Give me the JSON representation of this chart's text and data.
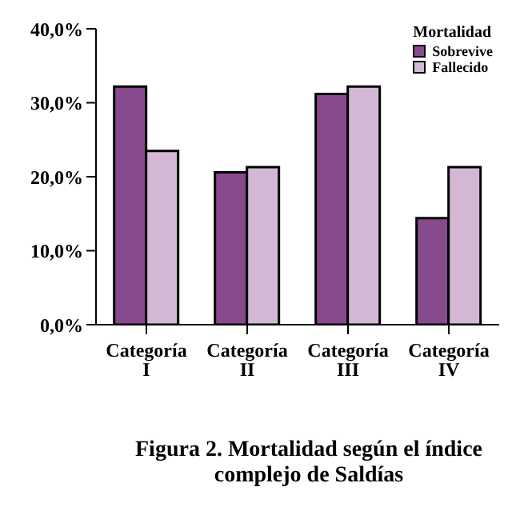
{
  "chart_data": {
    "type": "bar",
    "title": "Figura 2. Mortalidad según el índice complejo de Saldías",
    "legend_title": "Mortalidad",
    "categories": [
      "Categoría I",
      "Categoría II",
      "Categoría III",
      "Categoría IV"
    ],
    "series": [
      {
        "name": "Sobrevive",
        "color": "#874a8c",
        "values": [
          32.2,
          20.6,
          31.2,
          14.4
        ]
      },
      {
        "name": "Fallecido",
        "color": "#d2b8d4",
        "values": [
          23.5,
          21.3,
          32.2,
          21.3
        ]
      }
    ],
    "ylim": [
      0,
      40
    ],
    "yticks": [
      {
        "value": 0,
        "label": "0,0%"
      },
      {
        "value": 10,
        "label": "10,0%"
      },
      {
        "value": 20,
        "label": "20,0%"
      },
      {
        "value": 30,
        "label": "30,0%"
      },
      {
        "value": 40,
        "label": "40,0%"
      }
    ],
    "grid": false,
    "legend": "top right"
  }
}
